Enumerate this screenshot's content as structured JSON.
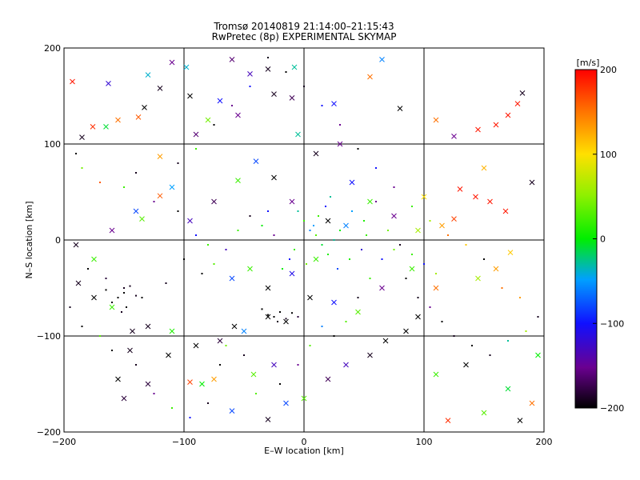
{
  "chart_data": {
    "type": "scatter",
    "title": "Tromsø 20140819 21:14:00–21:15:43",
    "subtitle": "RwPretec (8p) EXPERIMENTAL SKYMAP",
    "xlabel": "E–W location [km]",
    "ylabel": "N–S location [km]",
    "xlim": [
      -200,
      200
    ],
    "ylim": [
      -200,
      200
    ],
    "xticks": [
      -200,
      -100,
      0,
      100,
      200
    ],
    "yticks": [
      -200,
      -100,
      0,
      100,
      200
    ],
    "grid": true,
    "colorbar": {
      "label": "[m/s]",
      "range": [
        -200,
        200
      ],
      "ticks": [
        200,
        100,
        0,
        -100,
        -200
      ],
      "colormap": "rainbow (black-purple-blue-cyan-green-yellow-red)"
    },
    "series": [
      {
        "marker": "x",
        "points": [
          [
            -193,
            165,
            190
          ],
          [
            -163,
            163,
            -120
          ],
          [
            -138,
            128,
            160
          ],
          [
            -130,
            172,
            -40
          ],
          [
            -120,
            158,
            -190
          ],
          [
            -165,
            118,
            -10
          ],
          [
            -176,
            118,
            180
          ],
          [
            -185,
            107,
            -190
          ],
          [
            -155,
            125,
            150
          ],
          [
            -133,
            138,
            -200
          ],
          [
            -120,
            87,
            130
          ],
          [
            -135,
            22,
            30
          ],
          [
            -98,
            180,
            -40
          ],
          [
            -110,
            185,
            -150
          ],
          [
            -95,
            150,
            -200
          ],
          [
            -70,
            145,
            -100
          ],
          [
            -80,
            125,
            40
          ],
          [
            -90,
            110,
            -160
          ],
          [
            -55,
            130,
            -150
          ],
          [
            -25,
            152,
            -190
          ],
          [
            -10,
            148,
            -170
          ],
          [
            -60,
            188,
            -160
          ],
          [
            -45,
            173,
            -130
          ],
          [
            -30,
            178,
            -190
          ],
          [
            -8,
            180,
            -30
          ],
          [
            25,
            142,
            -100
          ],
          [
            55,
            170,
            150
          ],
          [
            65,
            188,
            -60
          ],
          [
            80,
            137,
            -200
          ],
          [
            110,
            125,
            150
          ],
          [
            145,
            115,
            190
          ],
          [
            160,
            120,
            190
          ],
          [
            170,
            130,
            190
          ],
          [
            178,
            142,
            190
          ],
          [
            182,
            153,
            -190
          ],
          [
            125,
            108,
            -150
          ],
          [
            125,
            22,
            170
          ],
          [
            143,
            45,
            190
          ],
          [
            155,
            40,
            190
          ],
          [
            168,
            30,
            190
          ],
          [
            150,
            75,
            120
          ],
          [
            130,
            53,
            190
          ],
          [
            100,
            45,
            100
          ],
          [
            115,
            15,
            130
          ],
          [
            172,
            -13,
            110
          ],
          [
            160,
            -30,
            130
          ],
          [
            145,
            -40,
            60
          ],
          [
            110,
            -50,
            150
          ],
          [
            90,
            -30,
            20
          ],
          [
            95,
            -80,
            -200
          ],
          [
            85,
            -95,
            -200
          ],
          [
            68,
            -105,
            -200
          ],
          [
            55,
            -120,
            -190
          ],
          [
            35,
            -130,
            -130
          ],
          [
            20,
            -145,
            -170
          ],
          [
            0,
            -165,
            30
          ],
          [
            -15,
            -170,
            -80
          ],
          [
            -25,
            -130,
            -130
          ],
          [
            -42,
            -140,
            30
          ],
          [
            -58,
            -90,
            -200
          ],
          [
            -70,
            -105,
            -180
          ],
          [
            -90,
            -110,
            -200
          ],
          [
            -110,
            -95,
            10
          ],
          [
            -130,
            -90,
            -190
          ],
          [
            -143,
            -95,
            -190
          ],
          [
            -160,
            -70,
            20
          ],
          [
            -175,
            -60,
            -200
          ],
          [
            -188,
            -45,
            -190
          ],
          [
            -155,
            -145,
            -200
          ],
          [
            -145,
            -115,
            -190
          ],
          [
            -130,
            -150,
            -180
          ],
          [
            -113,
            -120,
            -200
          ],
          [
            -95,
            -148,
            170
          ],
          [
            -75,
            -145,
            130
          ],
          [
            -50,
            -95,
            -60
          ],
          [
            -30,
            -80,
            -200
          ],
          [
            -15,
            -85,
            -200
          ],
          [
            5,
            -60,
            -200
          ],
          [
            25,
            -65,
            -100
          ],
          [
            45,
            -75,
            30
          ],
          [
            65,
            -50,
            -150
          ],
          [
            -60,
            -40,
            -80
          ],
          [
            -45,
            -30,
            20
          ],
          [
            -30,
            -50,
            -200
          ],
          [
            -10,
            -35,
            -110
          ],
          [
            10,
            -20,
            20
          ],
          [
            20,
            20,
            -200
          ],
          [
            35,
            15,
            -60
          ],
          [
            -10,
            40,
            -150
          ],
          [
            -25,
            65,
            -200
          ],
          [
            -40,
            82,
            -80
          ],
          [
            -55,
            62,
            20
          ],
          [
            -75,
            40,
            -170
          ],
          [
            -95,
            20,
            -130
          ],
          [
            -110,
            55,
            -50
          ],
          [
            -120,
            46,
            160
          ],
          [
            -140,
            30,
            -80
          ],
          [
            -160,
            10,
            -150
          ],
          [
            -175,
            -20,
            20
          ],
          [
            -190,
            -5,
            -190
          ],
          [
            40,
            60,
            -100
          ],
          [
            55,
            40,
            20
          ],
          [
            75,
            25,
            -150
          ],
          [
            95,
            10,
            60
          ],
          [
            10,
            90,
            -190
          ],
          [
            30,
            100,
            -150
          ],
          [
            -5,
            110,
            -30
          ],
          [
            150,
            -180,
            30
          ],
          [
            170,
            -155,
            -10
          ],
          [
            190,
            -170,
            150
          ],
          [
            180,
            -188,
            -200
          ],
          [
            120,
            -188,
            180
          ],
          [
            190,
            60,
            -190
          ],
          [
            195,
            -120,
            0
          ],
          [
            135,
            -130,
            -200
          ],
          [
            110,
            -140,
            20
          ],
          [
            -30,
            -187,
            -190
          ],
          [
            -60,
            -178,
            -80
          ],
          [
            -85,
            -150,
            0
          ],
          [
            -150,
            -165,
            -180
          ]
        ]
      },
      {
        "marker": "dot",
        "points": [
          [
            -190,
            90,
            -200
          ],
          [
            -185,
            75,
            40
          ],
          [
            -170,
            60,
            160
          ],
          [
            -150,
            55,
            20
          ],
          [
            -140,
            70,
            -190
          ],
          [
            -125,
            40,
            -150
          ],
          [
            -105,
            30,
            -200
          ],
          [
            -90,
            5,
            -100
          ],
          [
            -80,
            -5,
            20
          ],
          [
            -100,
            -20,
            -200
          ],
          [
            -115,
            -45,
            -190
          ],
          [
            -135,
            -60,
            -200
          ],
          [
            -150,
            -50,
            -190
          ],
          [
            -165,
            -40,
            -180
          ],
          [
            -180,
            -30,
            -200
          ],
          [
            -195,
            -70,
            -190
          ],
          [
            -185,
            -90,
            -200
          ],
          [
            -170,
            -100,
            30
          ],
          [
            -160,
            -115,
            -200
          ],
          [
            -140,
            -130,
            -190
          ],
          [
            -125,
            -160,
            -150
          ],
          [
            -110,
            -175,
            20
          ],
          [
            -95,
            -185,
            -100
          ],
          [
            -80,
            -170,
            -190
          ],
          [
            -70,
            -130,
            -200
          ],
          [
            -65,
            -110,
            40
          ],
          [
            -50,
            -120,
            -190
          ],
          [
            -40,
            -160,
            30
          ],
          [
            -20,
            -150,
            -200
          ],
          [
            -5,
            -130,
            -150
          ],
          [
            5,
            -110,
            30
          ],
          [
            15,
            -90,
            -60
          ],
          [
            25,
            -100,
            -200
          ],
          [
            35,
            -85,
            30
          ],
          [
            45,
            -60,
            -190
          ],
          [
            55,
            -40,
            20
          ],
          [
            65,
            -20,
            -100
          ],
          [
            75,
            -10,
            40
          ],
          [
            85,
            -40,
            -200
          ],
          [
            95,
            -60,
            -190
          ],
          [
            105,
            -70,
            -150
          ],
          [
            115,
            -85,
            -200
          ],
          [
            125,
            -100,
            -190
          ],
          [
            140,
            -110,
            -200
          ],
          [
            155,
            -120,
            -190
          ],
          [
            170,
            -105,
            -30
          ],
          [
            185,
            -95,
            60
          ],
          [
            195,
            -80,
            -190
          ],
          [
            180,
            -60,
            130
          ],
          [
            165,
            -50,
            150
          ],
          [
            150,
            -20,
            -200
          ],
          [
            135,
            -5,
            110
          ],
          [
            120,
            5,
            150
          ],
          [
            105,
            20,
            60
          ],
          [
            90,
            35,
            20
          ],
          [
            75,
            55,
            -150
          ],
          [
            60,
            75,
            -100
          ],
          [
            45,
            95,
            -200
          ],
          [
            30,
            120,
            -150
          ],
          [
            15,
            140,
            -100
          ],
          [
            0,
            160,
            -190
          ],
          [
            -15,
            175,
            -200
          ],
          [
            -30,
            190,
            -190
          ],
          [
            -45,
            160,
            -100
          ],
          [
            -60,
            140,
            -150
          ],
          [
            -75,
            120,
            -200
          ],
          [
            -90,
            95,
            20
          ],
          [
            -105,
            80,
            -190
          ],
          [
            -5,
            30,
            -30
          ],
          [
            0,
            20,
            20
          ],
          [
            5,
            10,
            -60
          ],
          [
            10,
            5,
            30
          ],
          [
            15,
            -5,
            -10
          ],
          [
            20,
            -15,
            10
          ],
          [
            25,
            0,
            -30
          ],
          [
            30,
            10,
            0
          ],
          [
            8,
            15,
            -50
          ],
          [
            12,
            25,
            20
          ],
          [
            18,
            35,
            -100
          ],
          [
            22,
            45,
            -30
          ],
          [
            -8,
            -10,
            20
          ],
          [
            -12,
            -20,
            -100
          ],
          [
            -18,
            -30,
            0
          ],
          [
            2,
            -25,
            40
          ],
          [
            28,
            -30,
            -80
          ],
          [
            38,
            -20,
            10
          ],
          [
            48,
            -10,
            -120
          ],
          [
            52,
            5,
            20
          ],
          [
            -25,
            5,
            -150
          ],
          [
            -35,
            15,
            0
          ],
          [
            -45,
            25,
            -190
          ],
          [
            -55,
            10,
            20
          ],
          [
            -65,
            -10,
            -130
          ],
          [
            -75,
            -25,
            30
          ],
          [
            -85,
            -35,
            -200
          ],
          [
            -30,
            30,
            -100
          ],
          [
            40,
            30,
            -50
          ],
          [
            50,
            20,
            10
          ],
          [
            60,
            40,
            -150
          ],
          [
            70,
            10,
            40
          ],
          [
            80,
            -5,
            -190
          ],
          [
            90,
            -15,
            20
          ],
          [
            100,
            -25,
            -100
          ],
          [
            110,
            -35,
            60
          ],
          [
            -150,
            -55,
            -200
          ],
          [
            -155,
            -60,
            -200
          ],
          [
            -145,
            -48,
            -190
          ],
          [
            -160,
            -65,
            -200
          ],
          [
            -148,
            -70,
            -200
          ],
          [
            -140,
            -58,
            -190
          ],
          [
            -165,
            -52,
            -200
          ],
          [
            -152,
            -75,
            -190
          ],
          [
            -25,
            -80,
            -200
          ],
          [
            -20,
            -75,
            -200
          ],
          [
            -15,
            -82,
            -190
          ],
          [
            -30,
            -78,
            -200
          ],
          [
            -10,
            -76,
            -200
          ],
          [
            -22,
            -85,
            -190
          ],
          [
            -35,
            -72,
            -200
          ],
          [
            -5,
            -80,
            -180
          ]
        ]
      }
    ]
  }
}
